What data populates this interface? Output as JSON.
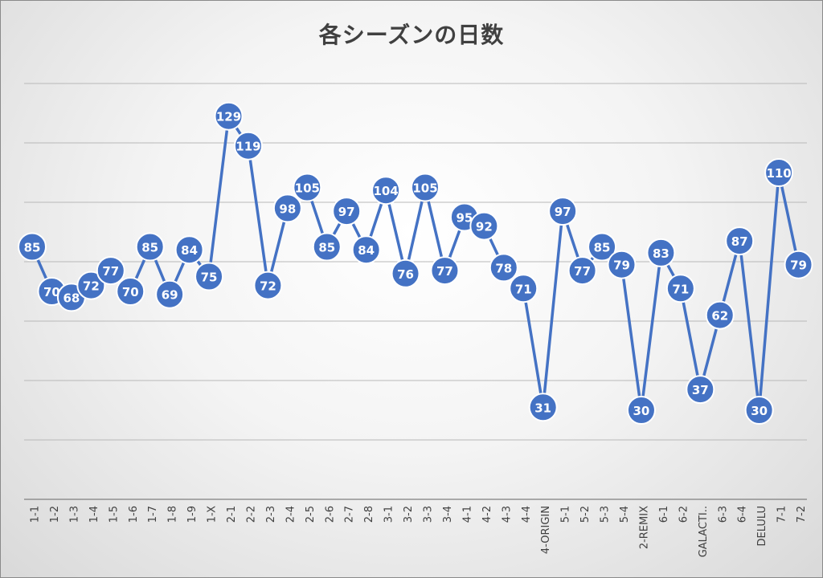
{
  "chart_data": {
    "type": "line",
    "title": "各シーズンの日数",
    "xlabel": "",
    "ylabel": "",
    "ylim": [
      0,
      140
    ],
    "grid": true,
    "y_tick_labels_shown": false,
    "categories": [
      "1-1",
      "1-2",
      "1-3",
      "1-4",
      "1-5",
      "1-6",
      "1-7",
      "1-8",
      "1-9",
      "1-X",
      "2-1",
      "2-2",
      "2-3",
      "2-4",
      "2-5",
      "2-6",
      "2-7",
      "2-8",
      "3-1",
      "3-2",
      "3-3",
      "3-4",
      "4-1",
      "4-2",
      "4-3",
      "4-4",
      "4-ORIGIN",
      "5-1",
      "5-2",
      "5-3",
      "5-4",
      "2-REMIX",
      "6-1",
      "6-2",
      "GALACTI..",
      "6-3",
      "6-4",
      "DELULU",
      "7-1",
      "7-2"
    ],
    "series": [
      {
        "values": [
          85,
          70,
          68,
          72,
          77,
          70,
          85,
          69,
          84,
          75,
          129,
          119,
          72,
          98,
          105,
          85,
          97,
          84,
          104,
          76,
          105,
          77,
          95,
          92,
          78,
          71,
          31,
          97,
          77,
          85,
          79,
          30,
          83,
          71,
          37,
          62,
          87,
          30,
          110,
          79
        ]
      }
    ],
    "colors": {
      "series": "#4472c4",
      "marker_text": "#ffffff",
      "grid": "#b8b8b8"
    }
  }
}
